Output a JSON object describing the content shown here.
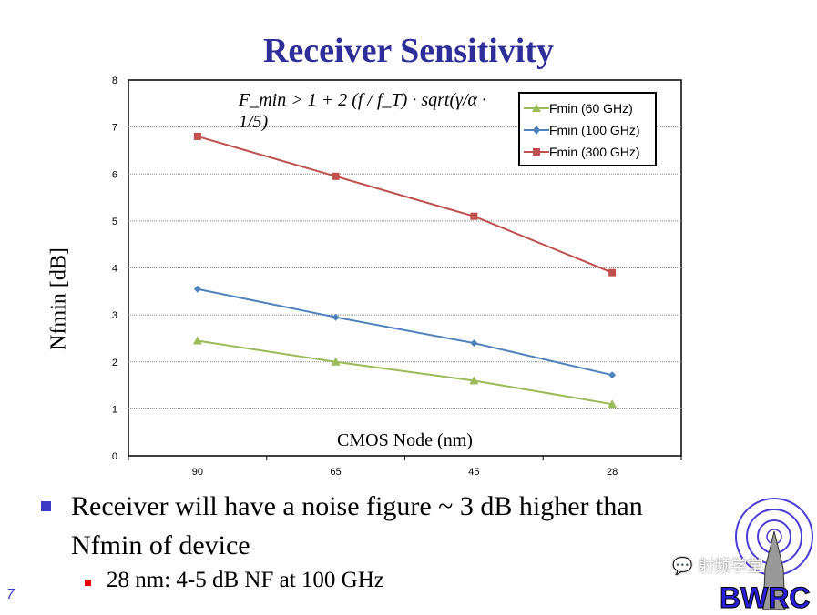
{
  "slide": {
    "title": "Receiver Sensitivity",
    "page_number": "7",
    "bullets": [
      {
        "text": "Receiver will have a noise figure ~ 3 dB higher than Nfmin of device",
        "level": 1
      },
      {
        "text": "28 nm: 4-5 dB NF at 100 GHz",
        "level": 2
      }
    ],
    "logo_text": "BWRC",
    "watermark_text": "射频学堂",
    "accent_color": "#2e2e9a"
  },
  "chart_data": {
    "type": "line",
    "title": "",
    "xlabel": "CMOS Node (nm)",
    "ylabel": "Nfmin [dB]",
    "categories": [
      "90",
      "65",
      "45",
      "28"
    ],
    "ylim": [
      0,
      8
    ],
    "yticks": [
      0,
      1,
      2,
      3,
      4,
      5,
      6,
      7,
      8
    ],
    "grid": "horizontal dotted",
    "legend_placement": "top-right",
    "annotation": "F_min > 1 + 2 (f / f_T) · sqrt(γ/α · 1/5)",
    "series": [
      {
        "name": "Fmin (60 GHz)",
        "color": "#9bbb59",
        "marker": "triangle",
        "values": [
          2.45,
          2.0,
          1.6,
          1.1
        ]
      },
      {
        "name": "Fmin (100 GHz)",
        "color": "#4f81bd",
        "marker": "diamond",
        "values": [
          3.55,
          2.95,
          2.4,
          1.72
        ]
      },
      {
        "name": "Fmin (300 GHz)",
        "color": "#c0504d",
        "marker": "square",
        "values": [
          6.8,
          5.95,
          5.1,
          3.9
        ]
      }
    ]
  }
}
